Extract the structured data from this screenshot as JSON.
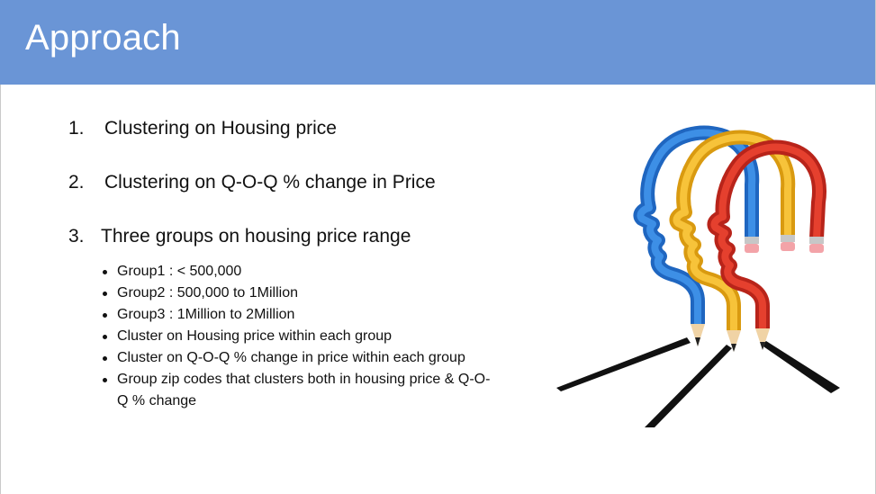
{
  "slide": {
    "title": "Approach",
    "numbered_items": [
      {
        "num": "1.",
        "text": "Clustering on Housing price"
      },
      {
        "num": "2.",
        "text": "Clustering on Q-O-Q % change in Price"
      },
      {
        "num": "3.",
        "text": "Three groups on housing price range"
      }
    ],
    "sub_bullets": [
      "Group1 : < 500,000",
      "Group2 : 500,000 to 1Million",
      "Group3 : 1Million to 2Million",
      "Cluster on Housing price within each group",
      "Cluster on Q-O-Q % change in price within each group",
      "Group zip codes that clusters both in housing price & Q-O-Q % change"
    ],
    "illustration": {
      "icon": "pencil-heads-illustration",
      "colors": {
        "blue": "#2e7fd9",
        "yellow": "#f2b72a",
        "red": "#e23b2a"
      }
    },
    "colors": {
      "title_bar": "#6a95d6",
      "title_text": "#ffffff"
    }
  }
}
